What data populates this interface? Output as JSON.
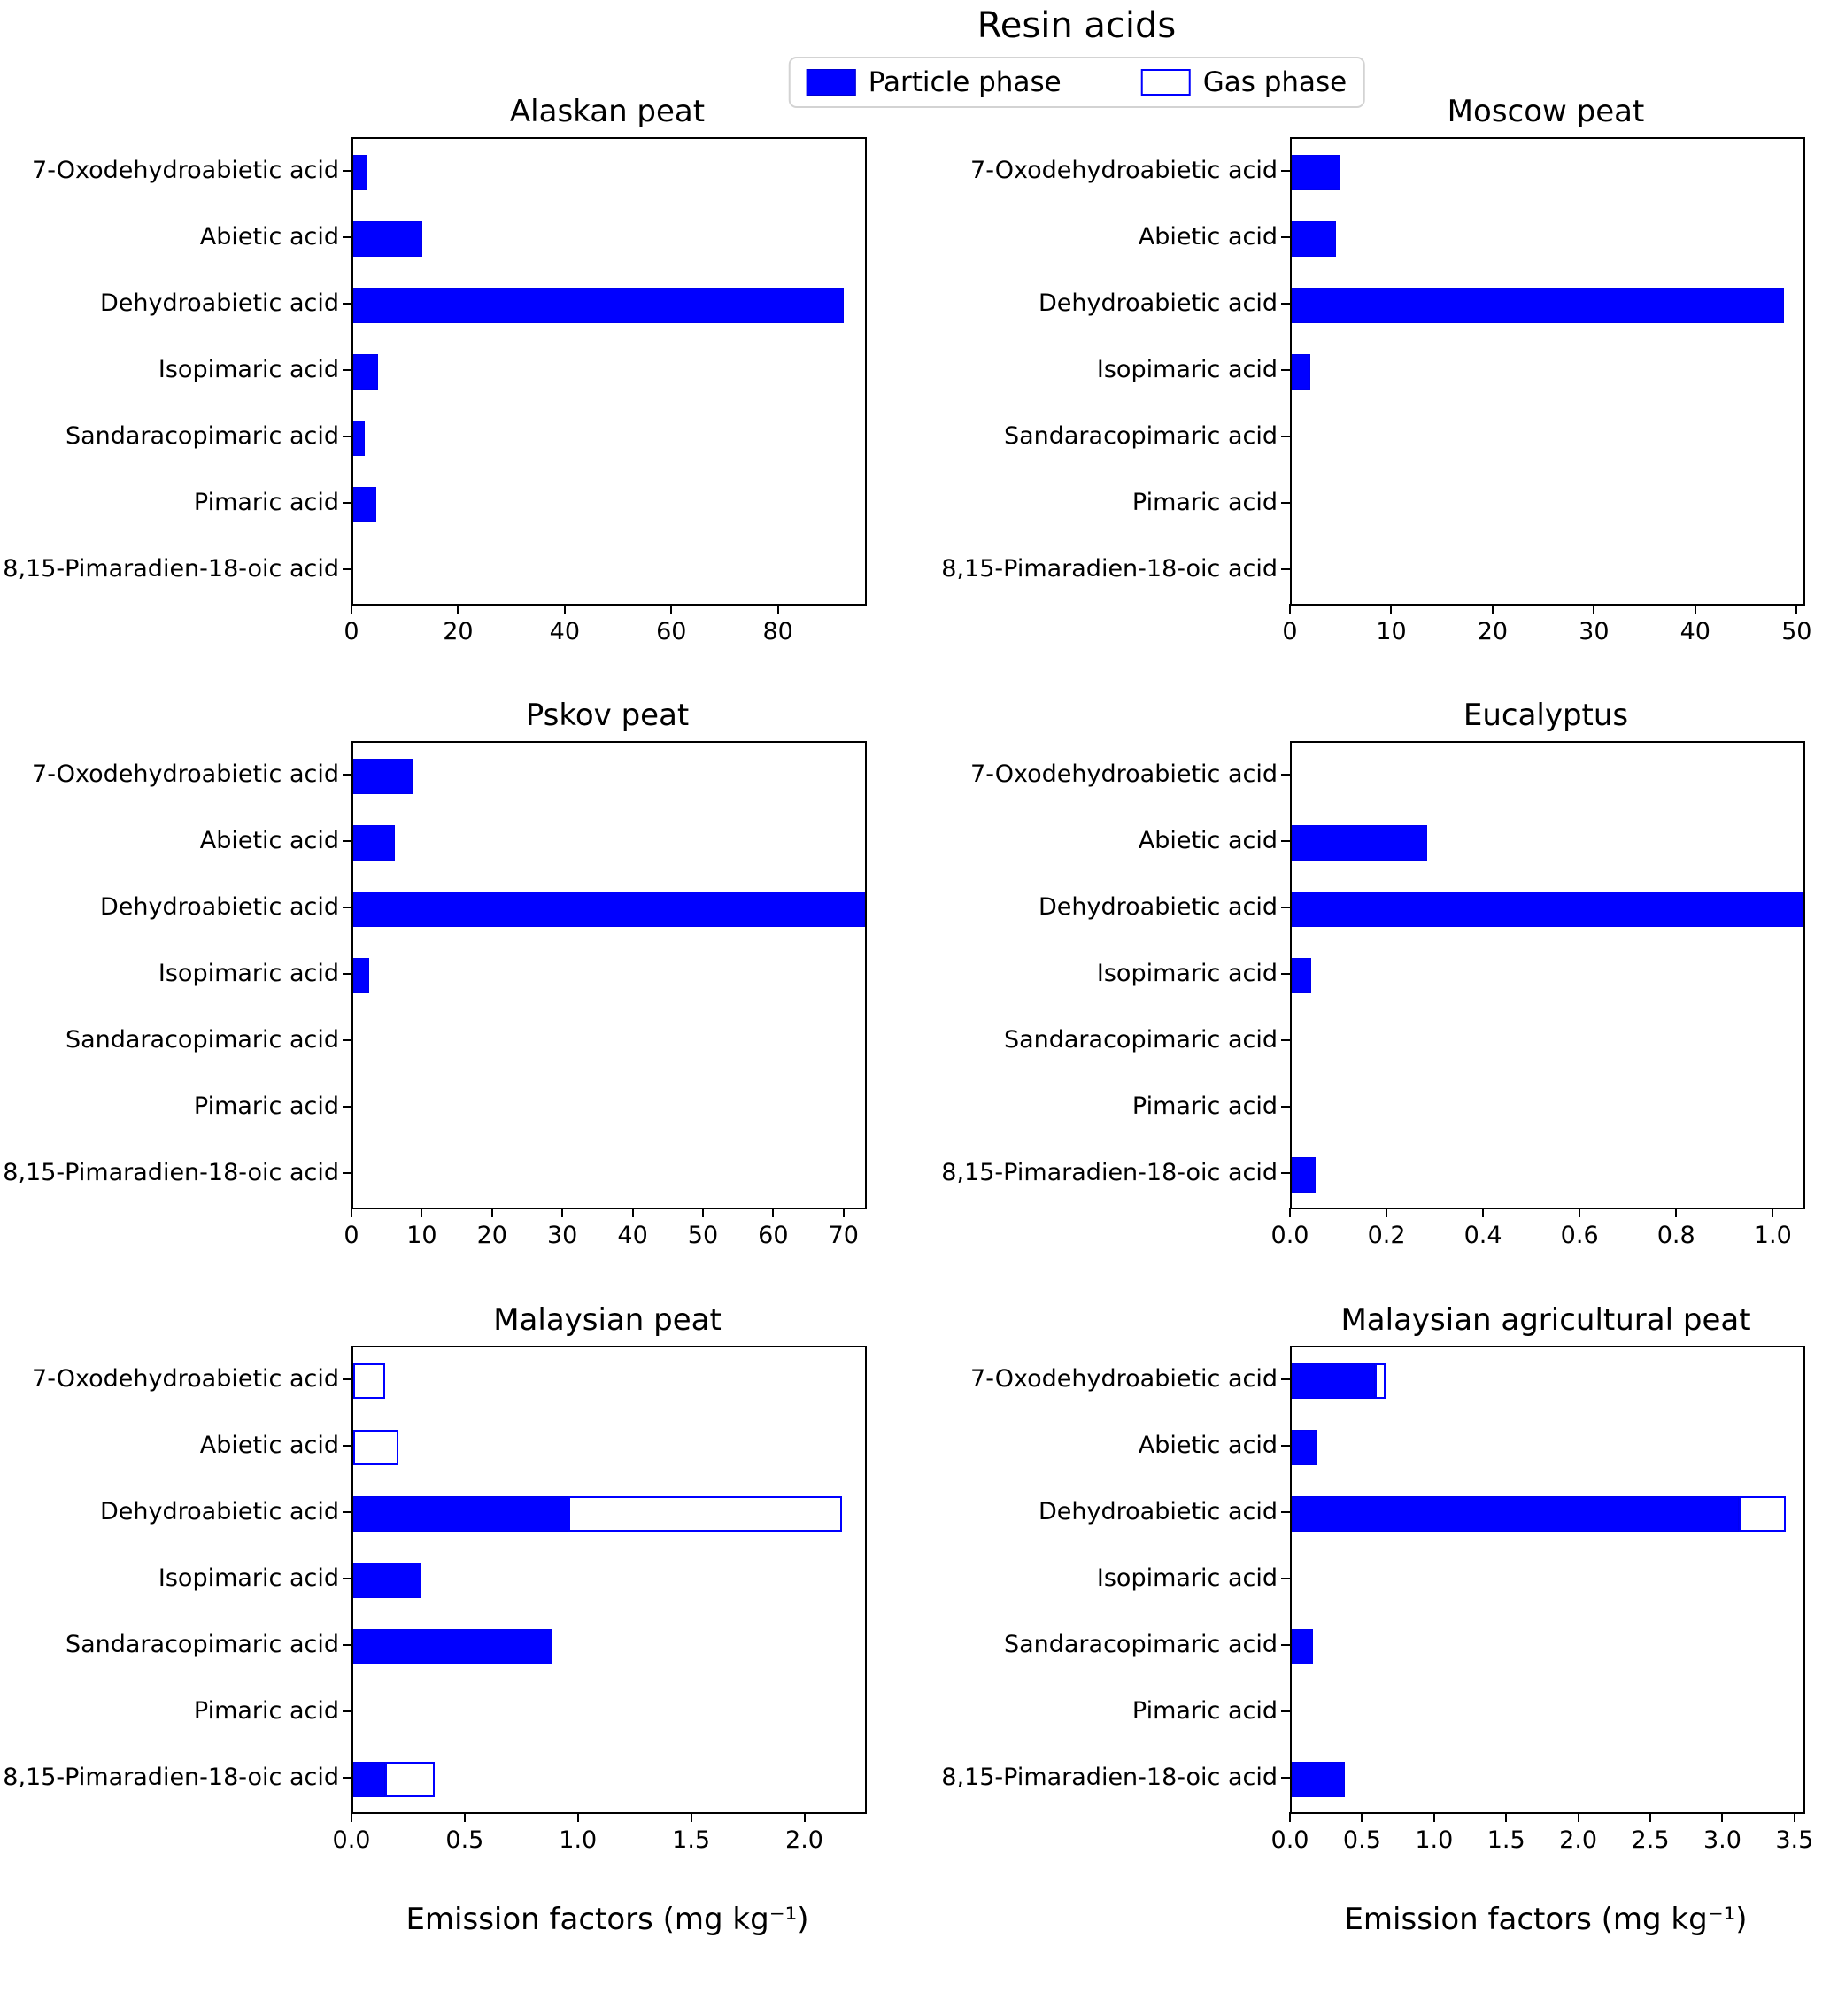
{
  "figure": {
    "title": "Resin acids",
    "xlabel": "Emission factors (mg kg⁻¹)"
  },
  "legend": {
    "particle": "Particle phase",
    "gas": "Gas phase",
    "position": "top center"
  },
  "colors": {
    "particle_fill": "#0000ff",
    "gas_fill": "#ffffff",
    "gas_edge": "#0000ff",
    "spine": "#000000"
  },
  "chart_data": [
    {
      "type": "bar",
      "orientation": "horizontal",
      "title": "Alaskan peat",
      "categories": [
        "7-Oxodehydroabietic acid",
        "Abietic acid",
        "Dehydroabietic acid",
        "Isopimaric acid",
        "Sandaracopimaric acid",
        "Pimaric acid",
        "8,15-Pimaradien-18-oic acid"
      ],
      "series": [
        {
          "name": "Particle phase",
          "values": [
            2.7,
            13.0,
            92.0,
            4.7,
            2.1,
            4.3,
            0
          ]
        },
        {
          "name": "Gas phase",
          "values": [
            0,
            0,
            0,
            0,
            0,
            0,
            0
          ]
        }
      ],
      "xlim": [
        0,
        96
      ],
      "xticks": [
        0,
        20,
        40,
        60,
        80
      ],
      "xtick_labels": [
        "0",
        "20",
        "40",
        "60",
        "80"
      ],
      "grid": false
    },
    {
      "type": "bar",
      "orientation": "horizontal",
      "title": "Moscow peat",
      "categories": [
        "7-Oxodehydroabietic acid",
        "Abietic acid",
        "Dehydroabietic acid",
        "Isopimaric acid",
        "Sandaracopimaric acid",
        "Pimaric acid",
        "8,15-Pimaradien-18-oic acid"
      ],
      "series": [
        {
          "name": "Particle phase",
          "values": [
            4.8,
            4.4,
            48.6,
            1.8,
            0,
            0,
            0
          ]
        },
        {
          "name": "Gas phase",
          "values": [
            0,
            0,
            0,
            0,
            0,
            0,
            0
          ]
        }
      ],
      "xlim": [
        0,
        50.5
      ],
      "xticks": [
        0,
        10,
        20,
        30,
        40,
        50
      ],
      "xtick_labels": [
        "0",
        "10",
        "20",
        "30",
        "40",
        "50"
      ],
      "grid": false
    },
    {
      "type": "bar",
      "orientation": "horizontal",
      "title": "Pskov peat",
      "categories": [
        "7-Oxodehydroabietic acid",
        "Abietic acid",
        "Dehydroabietic acid",
        "Isopimaric acid",
        "Sandaracopimaric acid",
        "Pimaric acid",
        "8,15-Pimaradien-18-oic acid"
      ],
      "series": [
        {
          "name": "Particle phase",
          "values": [
            8.4,
            5.9,
            72.8,
            2.3,
            0,
            0,
            0
          ]
        },
        {
          "name": "Gas phase",
          "values": [
            0,
            0,
            0,
            0,
            0,
            0,
            0
          ]
        }
      ],
      "xlim": [
        0,
        72.8
      ],
      "xticks": [
        0,
        10,
        20,
        30,
        40,
        50,
        60,
        70
      ],
      "xtick_labels": [
        "0",
        "10",
        "20",
        "30",
        "40",
        "50",
        "60",
        "70"
      ],
      "grid": false
    },
    {
      "type": "bar",
      "orientation": "horizontal",
      "title": "Eucalyptus",
      "categories": [
        "7-Oxodehydroabietic acid",
        "Abietic acid",
        "Dehydroabietic acid",
        "Isopimaric acid",
        "Sandaracopimaric acid",
        "Pimaric acid",
        "8,15-Pimaradien-18-oic acid"
      ],
      "series": [
        {
          "name": "Particle phase",
          "values": [
            0,
            0.28,
            1.06,
            0.04,
            0,
            0,
            0.05
          ]
        },
        {
          "name": "Gas phase",
          "values": [
            0,
            0,
            0,
            0,
            0,
            0,
            0
          ]
        }
      ],
      "xlim": [
        0,
        1.06
      ],
      "xticks": [
        0.0,
        0.2,
        0.4,
        0.6,
        0.8,
        1.0
      ],
      "xtick_labels": [
        "0.0",
        "0.2",
        "0.4",
        "0.6",
        "0.8",
        "1.0"
      ],
      "grid": false
    },
    {
      "type": "bar",
      "orientation": "horizontal",
      "title": "Malaysian peat",
      "categories": [
        "7-Oxodehydroabietic acid",
        "Abietic acid",
        "Dehydroabietic acid",
        "Isopimaric acid",
        "Sandaracopimaric acid",
        "Pimaric acid",
        "8,15-Pimaradien-18-oic acid"
      ],
      "series": [
        {
          "name": "Particle phase",
          "values": [
            0,
            0,
            0.95,
            0.3,
            0.88,
            0,
            0.14
          ]
        },
        {
          "name": "Gas phase",
          "values": [
            0.14,
            0.2,
            1.21,
            0,
            0,
            0,
            0.22
          ]
        }
      ],
      "xlim": [
        0,
        2.26
      ],
      "xticks": [
        0.0,
        0.5,
        1.0,
        1.5,
        2.0
      ],
      "xtick_labels": [
        "0.0",
        "0.5",
        "1.0",
        "1.5",
        "2.0"
      ],
      "grid": false
    },
    {
      "type": "bar",
      "orientation": "horizontal",
      "title": "Malaysian agricultural peat",
      "categories": [
        "7-Oxodehydroabietic acid",
        "Abietic acid",
        "Dehydroabietic acid",
        "Isopimaric acid",
        "Sandaracopimaric acid",
        "Pimaric acid",
        "8,15-Pimaradien-18-oic acid"
      ],
      "series": [
        {
          "name": "Particle phase",
          "values": [
            0.58,
            0.17,
            3.1,
            0,
            0.15,
            0,
            0.37
          ]
        },
        {
          "name": "Gas phase",
          "values": [
            0.07,
            0,
            0.33,
            0,
            0,
            0,
            0
          ]
        }
      ],
      "xlim": [
        0,
        3.55
      ],
      "xticks": [
        0.0,
        0.5,
        1.0,
        1.5,
        2.0,
        2.5,
        3.0,
        3.5
      ],
      "xtick_labels": [
        "0.0",
        "0.5",
        "1.0",
        "1.5",
        "2.0",
        "2.5",
        "3.0",
        "3.5"
      ],
      "grid": false
    }
  ]
}
